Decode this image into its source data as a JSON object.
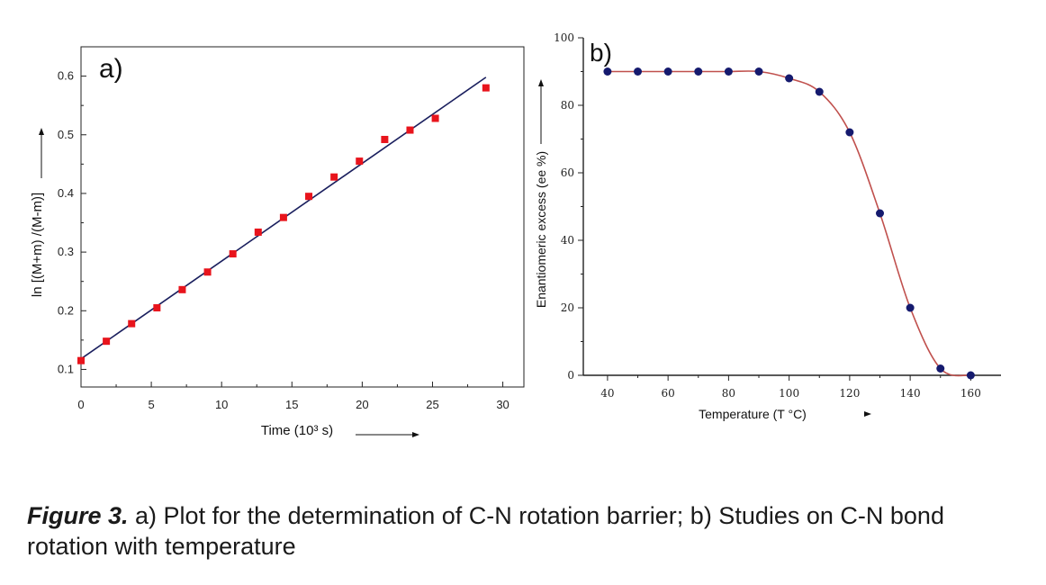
{
  "chart_data": [
    {
      "type": "scatter",
      "panel_label": "a)",
      "xlabel": "Time (10³ s)",
      "ylabel": "ln [(M+m) /(M-m)]",
      "xlim": [
        0,
        31.5
      ],
      "ylim": [
        0.07,
        0.65
      ],
      "x_ticks": [
        0,
        5,
        10,
        15,
        20,
        25,
        30
      ],
      "y_ticks": [
        0.1,
        0.2,
        0.3,
        0.4,
        0.5,
        0.6
      ],
      "series": [
        {
          "kind": "points",
          "color": "#e8141c",
          "x": [
            0,
            1.8,
            3.6,
            5.4,
            7.2,
            9.0,
            10.8,
            12.6,
            14.4,
            16.2,
            18.0,
            19.8,
            21.6,
            23.4,
            25.2,
            28.8
          ],
          "y": [
            0.115,
            0.148,
            0.178,
            0.205,
            0.236,
            0.266,
            0.297,
            0.334,
            0.359,
            0.395,
            0.428,
            0.455,
            0.492,
            0.508,
            0.528,
            0.58
          ]
        },
        {
          "kind": "fit-line",
          "color": "#1a1f5e",
          "x": [
            0,
            28.8
          ],
          "y": [
            0.118,
            0.598
          ]
        }
      ],
      "grid": false
    },
    {
      "type": "line",
      "panel_label": "b)",
      "xlabel": "Temperature (T °C)",
      "ylabel": "Enantiomeric excess (ee %)",
      "xlim": [
        32,
        170
      ],
      "ylim": [
        0,
        100
      ],
      "x_ticks": [
        40,
        60,
        80,
        100,
        120,
        140,
        160
      ],
      "y_ticks": [
        0,
        20,
        40,
        60,
        80,
        100
      ],
      "series": [
        {
          "kind": "points-with-curve",
          "marker_color": "#151a6e",
          "line_color": "#c0504d",
          "x": [
            40,
            50,
            60,
            70,
            80,
            90,
            100,
            110,
            120,
            130,
            140,
            150,
            160
          ],
          "y": [
            90,
            90,
            90,
            90,
            90,
            90,
            88,
            84,
            72,
            48,
            20,
            2,
            0
          ]
        }
      ],
      "grid": false
    }
  ],
  "caption": {
    "figure_label": "Figure 3.",
    "text": " a) Plot for the determination of C-N rotation barrier; b) Studies on C-N bond rotation with temperature"
  }
}
